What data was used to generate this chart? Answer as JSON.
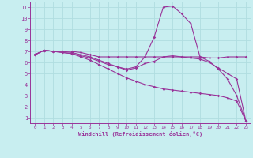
{
  "xlabel": "Windchill (Refroidissement éolien,°C)",
  "ylabel": "",
  "bg_color": "#c8eef0",
  "line_color": "#993399",
  "grid_color": "#b0dde0",
  "xlim": [
    -0.5,
    23.5
  ],
  "ylim": [
    0.5,
    11.5
  ],
  "xticks": [
    0,
    1,
    2,
    3,
    4,
    5,
    6,
    7,
    8,
    9,
    10,
    11,
    12,
    13,
    14,
    15,
    16,
    17,
    18,
    19,
    20,
    21,
    22,
    23
  ],
  "yticks": [
    1,
    2,
    3,
    4,
    5,
    6,
    7,
    8,
    9,
    10,
    11
  ],
  "series": [
    {
      "x": [
        0,
        1,
        2,
        3,
        4,
        5,
        6,
        7,
        8,
        9,
        10,
        11,
        12,
        13,
        14,
        15,
        16,
        17,
        18,
        19,
        20,
        21,
        22,
        23
      ],
      "y": [
        6.7,
        7.1,
        7.0,
        7.0,
        7.0,
        6.9,
        6.7,
        6.5,
        6.5,
        6.5,
        6.5,
        6.5,
        6.5,
        6.5,
        6.5,
        6.5,
        6.5,
        6.5,
        6.5,
        6.4,
        6.4,
        6.5,
        6.5,
        6.5
      ]
    },
    {
      "x": [
        0,
        1,
        2,
        3,
        4,
        5,
        6,
        7,
        8,
        9,
        10,
        11,
        12,
        13,
        14,
        15,
        16,
        17,
        18,
        19,
        20,
        21,
        22,
        23
      ],
      "y": [
        6.7,
        7.1,
        7.0,
        7.0,
        6.9,
        6.7,
        6.5,
        6.2,
        5.9,
        5.6,
        5.4,
        5.6,
        6.5,
        8.3,
        11.0,
        11.1,
        10.4,
        9.5,
        6.5,
        6.1,
        5.4,
        4.5,
        3.0,
        0.7
      ]
    },
    {
      "x": [
        0,
        1,
        2,
        3,
        4,
        5,
        6,
        7,
        8,
        9,
        10,
        11,
        12,
        13,
        14,
        15,
        16,
        17,
        18,
        19,
        20,
        21,
        22,
        23
      ],
      "y": [
        6.7,
        7.1,
        7.0,
        6.9,
        6.8,
        6.6,
        6.4,
        6.1,
        5.8,
        5.6,
        5.3,
        5.5,
        5.9,
        6.1,
        6.5,
        6.6,
        6.5,
        6.4,
        6.3,
        6.0,
        5.5,
        5.0,
        4.5,
        0.7
      ]
    },
    {
      "x": [
        0,
        1,
        2,
        3,
        4,
        5,
        6,
        7,
        8,
        9,
        10,
        11,
        12,
        13,
        14,
        15,
        16,
        17,
        18,
        19,
        20,
        21,
        22,
        23
      ],
      "y": [
        6.7,
        7.1,
        7.0,
        6.9,
        6.8,
        6.5,
        6.2,
        5.8,
        5.4,
        5.0,
        4.6,
        4.3,
        4.0,
        3.8,
        3.6,
        3.5,
        3.4,
        3.3,
        3.2,
        3.1,
        3.0,
        2.8,
        2.5,
        0.7
      ]
    }
  ]
}
